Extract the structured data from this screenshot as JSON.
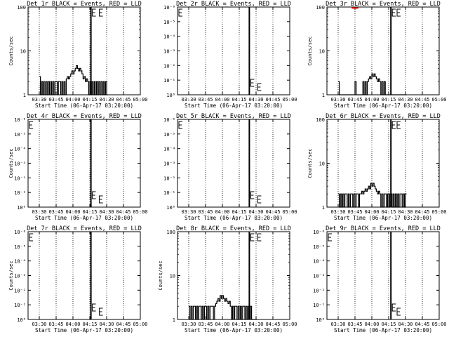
{
  "chart_data": {
    "type": "line",
    "layout": "3x3 grid",
    "x_tick_labels": [
      "03:30",
      "03:45",
      "04:00",
      "04:15",
      "04:30",
      "04:45",
      "05:00"
    ],
    "x_tick_minutes": [
      30,
      45,
      60,
      75,
      90,
      105,
      120
    ],
    "xlim_minutes": [
      20,
      120
    ],
    "xlabel": "Start Time (06-Apr-17 03:20:00)",
    "ylabel": "Counts/sec",
    "y_scale": "log",
    "dotted_vertical_lines_minutes": [
      30,
      45,
      60,
      75,
      90,
      105
    ],
    "panels": [
      {
        "title": "Det 1r BLACK = Events, RED = LLD",
        "ylim": [
          1,
          100
        ],
        "y_ticks": [
          "100",
          "10",
          "1"
        ],
        "black_series": {
          "name": "Events",
          "x": [
            30,
            31,
            32,
            33,
            34,
            35,
            36,
            37,
            38,
            39,
            40,
            41,
            42,
            43,
            44,
            45,
            46,
            47,
            48,
            49,
            50,
            51,
            52,
            53,
            54,
            55,
            56,
            57,
            58,
            59,
            60,
            61,
            62,
            63,
            64,
            65,
            66,
            67,
            68,
            69,
            70,
            71,
            72,
            73,
            74,
            75,
            76,
            77,
            78,
            79,
            80,
            81,
            82,
            83,
            84,
            85,
            86,
            87,
            88,
            89,
            90
          ],
          "y": [
            2.6,
            1,
            2,
            1,
            2,
            1,
            2,
            1,
            2,
            1,
            2,
            1,
            2,
            1,
            2,
            2,
            1,
            2,
            2,
            1,
            2,
            1,
            2,
            1,
            2.3,
            2.6,
            2.3,
            2.6,
            3,
            3.5,
            3,
            3.5,
            4,
            4.6,
            4,
            3.5,
            4,
            3.5,
            3,
            2.3,
            2.6,
            2,
            2.3,
            2,
            1,
            2,
            1,
            2,
            1,
            2,
            1,
            2,
            1,
            2,
            1,
            2,
            1,
            2,
            1,
            2,
            1
          ]
        },
        "red_series": null,
        "solid_line_minute": 76,
        "e_marker_minute": 81
      },
      {
        "title": "Det 2r BLACK = Events, RED = LLD",
        "ylim": [
          1,
          1000000
        ],
        "y_ticks": [
          "10⁻⁶",
          "10⁻⁵",
          "10⁻⁴",
          "10⁻³",
          "10⁻²",
          "10⁻¹",
          "10⁰"
        ],
        "black_series": null,
        "red_series": null,
        "solid_line_minute": 84,
        "e_marker_minute": 89
      },
      {
        "title": "Det 3r BLACK = Events, RED = LLD",
        "ylim": [
          1,
          100
        ],
        "y_ticks": [
          "100",
          "10",
          "1"
        ],
        "black_series": {
          "name": "Events",
          "x": [
            30,
            31,
            32,
            33,
            34,
            35,
            36,
            37,
            38,
            39,
            40,
            41,
            42,
            43,
            44,
            45,
            46,
            47,
            48,
            49,
            50,
            51,
            52,
            53,
            54,
            55,
            56,
            57,
            58,
            59,
            60,
            61,
            62,
            63,
            64,
            65,
            66,
            67,
            68,
            69,
            70,
            71,
            72,
            73,
            74,
            75,
            76,
            77,
            78,
            79,
            80,
            81,
            82,
            83,
            84,
            85,
            86,
            87,
            88,
            89,
            90
          ],
          "y": [
            2,
            1,
            1,
            1,
            1,
            1,
            1,
            1,
            1,
            1,
            1,
            1,
            1,
            1,
            1,
            2,
            1,
            1,
            1,
            1,
            1,
            1,
            2,
            1,
            2,
            1,
            2,
            2.3,
            2.6,
            2.3,
            3,
            2.6,
            3,
            2.6,
            2.3,
            2,
            2.3,
            2,
            1,
            2,
            1,
            2,
            1,
            1,
            1,
            1,
            1,
            1,
            1,
            1,
            1,
            1,
            1,
            1,
            1,
            1,
            1,
            1,
            1,
            1,
            1
          ]
        },
        "red_series": {
          "name": "LLD",
          "x": [
            42,
            44,
            46,
            48
          ],
          "y": [
            95,
            95,
            95,
            95
          ]
        },
        "solid_line_minute": 77,
        "e_marker_minute": 80
      },
      {
        "title": "Det 4r BLACK = Events, RED = LLD",
        "ylim": [
          1,
          1000000
        ],
        "y_ticks": [
          "10⁻⁶",
          "10⁻⁵",
          "10⁻⁴",
          "10⁻³",
          "10⁻²",
          "10⁻¹",
          "10⁰"
        ],
        "black_series": null,
        "red_series": null,
        "solid_line_minute": 76,
        "e_marker_minute": 81
      },
      {
        "title": "Det 5r BLACK = Events, RED = LLD",
        "ylim": [
          1,
          1000000
        ],
        "y_ticks": [
          "10⁻⁶",
          "10⁻⁵",
          "10⁻⁴",
          "10⁻³",
          "10⁻²",
          "10⁻¹",
          "10⁰"
        ],
        "black_series": null,
        "red_series": null,
        "solid_line_minute": 84,
        "e_marker_minute": 89
      },
      {
        "title": "Det 6r BLACK = Events, RED = LLD",
        "ylim": [
          1,
          100
        ],
        "y_ticks": [
          "100",
          "10",
          "1"
        ],
        "black_series": {
          "name": "Events",
          "x": [
            30,
            31,
            32,
            33,
            34,
            35,
            36,
            37,
            38,
            39,
            40,
            41,
            42,
            43,
            44,
            45,
            46,
            47,
            48,
            49,
            50,
            51,
            52,
            53,
            54,
            55,
            56,
            57,
            58,
            59,
            60,
            61,
            62,
            63,
            64,
            65,
            66,
            67,
            68,
            69,
            70,
            71,
            72,
            73,
            74,
            75,
            76,
            77,
            78,
            79,
            80,
            81,
            82,
            83,
            84,
            85,
            86,
            87,
            88,
            89,
            90
          ],
          "y": [
            2,
            1,
            2,
            1,
            2,
            1,
            2,
            2,
            1,
            2,
            1,
            2,
            2,
            1,
            2,
            1,
            2,
            2,
            1,
            2,
            2,
            2.3,
            2,
            2.3,
            2.6,
            2.3,
            2.6,
            3,
            2.6,
            3.5,
            3,
            3.5,
            3,
            2.6,
            2.3,
            2,
            2.3,
            2,
            1,
            2,
            1,
            2,
            2,
            1,
            2,
            1,
            2,
            2,
            1,
            2,
            1,
            2,
            1,
            2,
            1,
            2,
            2,
            1,
            2,
            1,
            2
          ]
        },
        "red_series": null,
        "solid_line_minute": 77,
        "e_marker_minute": 80
      },
      {
        "title": "Det 7r BLACK = Events, RED = LLD",
        "ylim": [
          1,
          1000000
        ],
        "y_ticks": [
          "10⁻⁶",
          "10⁻⁵",
          "10⁻⁴",
          "10⁻³",
          "10⁻²",
          "10⁻¹",
          "10⁰"
        ],
        "black_series": null,
        "red_series": null,
        "solid_line_minute": 76,
        "e_marker_minute": 81
      },
      {
        "title": "Det 8r BLACK = Events, RED = LLD",
        "ylim": [
          1,
          100
        ],
        "y_ticks": [
          "100",
          "10",
          "1"
        ],
        "black_series": {
          "name": "Events",
          "x": [
            30,
            31,
            32,
            33,
            34,
            35,
            36,
            37,
            38,
            39,
            40,
            41,
            42,
            43,
            44,
            45,
            46,
            47,
            48,
            49,
            50,
            51,
            52,
            53,
            54,
            55,
            56,
            57,
            58,
            59,
            60,
            61,
            62,
            63,
            64,
            65,
            66,
            67,
            68,
            69,
            70,
            71,
            72,
            73,
            74,
            75,
            76,
            77,
            78,
            79,
            80,
            81,
            82,
            83,
            84,
            85,
            86,
            87,
            88,
            89,
            90
          ],
          "y": [
            2,
            1,
            2,
            1,
            2,
            2,
            1,
            2,
            1,
            2,
            2,
            1,
            2,
            1,
            2,
            2,
            1,
            2,
            1,
            2,
            2,
            2,
            1,
            2,
            2.3,
            2.6,
            3,
            2.6,
            3.5,
            3,
            3.5,
            3,
            2.6,
            3,
            2.6,
            2.3,
            2.6,
            2,
            1,
            2,
            1,
            2,
            2,
            1,
            2,
            1,
            2,
            1,
            2,
            2,
            1,
            2,
            1,
            2,
            1,
            2,
            1,
            1,
            1,
            1,
            1
          ]
        },
        "red_series": null,
        "solid_line_minute": 84,
        "e_marker_minute": 89
      },
      {
        "title": "Det 9r BLACK = Events, RED = LLD",
        "ylim": [
          1,
          1000000
        ],
        "y_ticks": [
          "10⁻⁶",
          "10⁻⁵",
          "10⁻⁴",
          "10⁻³",
          "10⁻²",
          "10⁻¹",
          "10⁰"
        ],
        "black_series": null,
        "red_series": null,
        "solid_line_minute": 77,
        "e_marker_minute": 80
      }
    ]
  },
  "colors": {
    "events": "#000000",
    "lld": "#ff0000",
    "background": "#ffffff",
    "axes": "#000000"
  }
}
